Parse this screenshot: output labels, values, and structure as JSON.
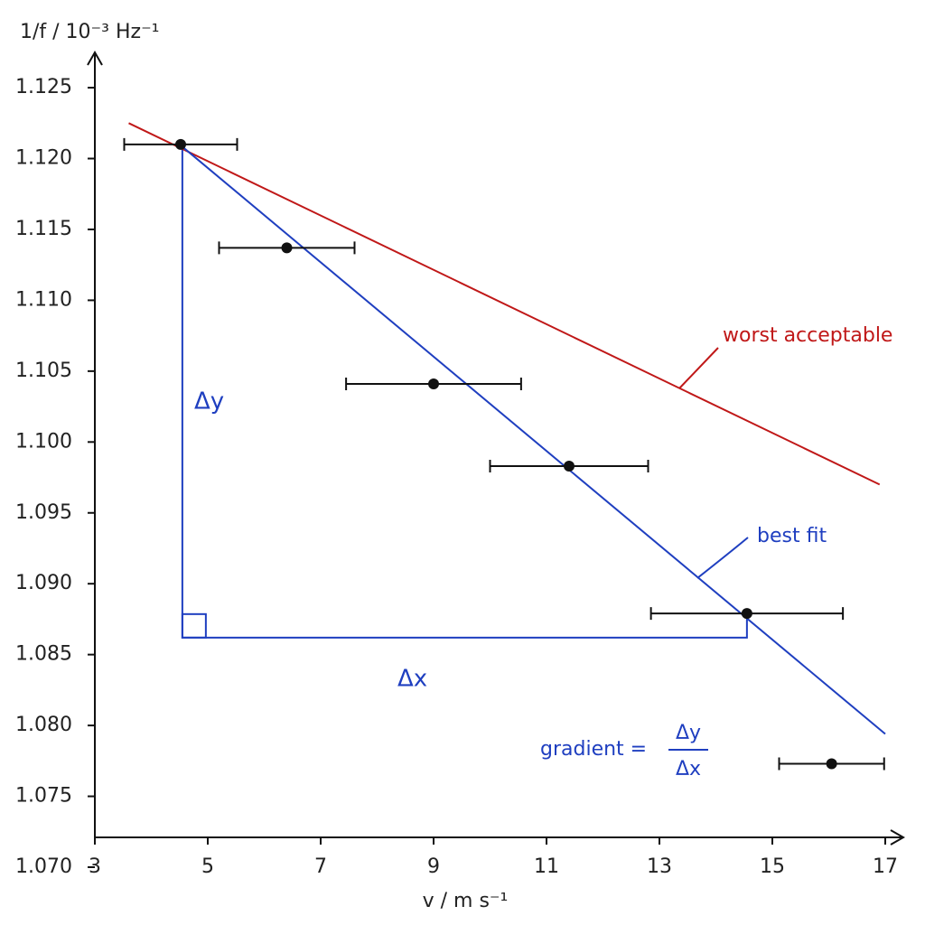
{
  "chart_data": {
    "type": "scatter",
    "y_label": "1/f / 10⁻³ Hz⁻¹",
    "x_label": "v / m s⁻¹",
    "xlim": [
      3,
      17
    ],
    "xticks": [
      3,
      5,
      7,
      9,
      11,
      13,
      15,
      17
    ],
    "ylim": [
      1.07,
      1.128
    ],
    "yticks": [
      {
        "value": 1.07,
        "label": "1.070"
      },
      1.075,
      {
        "value": 1.08,
        "label": "1.080"
      },
      1.085,
      {
        "value": 1.09,
        "label": "1.090"
      },
      1.095,
      {
        "value": 1.1,
        "label": "1.100"
      },
      1.105,
      {
        "value": 1.11,
        "label": "1.110"
      },
      1.115,
      {
        "value": 1.12,
        "label": "1.120"
      },
      1.125
    ],
    "points": {
      "color": "#111111",
      "x": [
        4.52,
        6.4,
        9.0,
        11.4,
        14.55,
        16.05
      ],
      "y": [
        1.121,
        1.1137,
        1.1041,
        1.0983,
        1.0879,
        1.0773
      ],
      "xerr": [
        1.0,
        1.2,
        1.55,
        1.4,
        1.7,
        0.93
      ]
    },
    "lines": [
      {
        "name": "worst acceptable",
        "color": "#c01818",
        "x": [
          3.6,
          16.9
        ],
        "y": [
          1.1225,
          1.097
        ]
      },
      {
        "name": "best fit",
        "color": "#1f3fc0",
        "x": [
          4.5,
          17.0
        ],
        "y": [
          1.121,
          1.0794
        ]
      }
    ],
    "triangle": {
      "color": "#1f3fc0",
      "x": [
        4.55,
        14.55
      ],
      "y": [
        1.0862,
        1.121
      ]
    },
    "annotations": {
      "dy": "Δy",
      "dx": "Δx",
      "gradient": "gradient =",
      "numerator": "Δy",
      "denominator": "Δx"
    }
  }
}
